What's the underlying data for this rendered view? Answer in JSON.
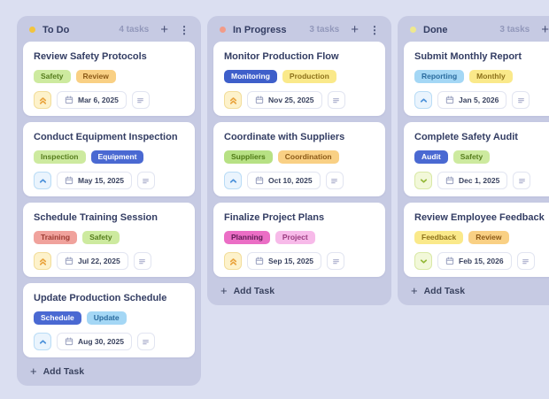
{
  "board": {
    "columns": [
      {
        "title": "To Do",
        "count_label": "4 tasks",
        "dot_color": "#f2c43d",
        "add_task_label": "Add Task",
        "tasks": [
          {
            "title": "Review Safety Protocols",
            "priority": "high",
            "date": "Mar 6, 2025",
            "tags": [
              {
                "label": "Safety",
                "bg": "#cdea9f",
                "fg": "#567d1d"
              },
              {
                "label": "Review",
                "bg": "#f9d084",
                "fg": "#8c5a17"
              }
            ]
          },
          {
            "title": "Conduct Equipment Inspection",
            "priority": "medium",
            "date": "May 15, 2025",
            "tags": [
              {
                "label": "Inspection",
                "bg": "#cdea9f",
                "fg": "#567d1d"
              },
              {
                "label": "Equipment",
                "bg": "#4a69d2",
                "fg": "#ffffff"
              }
            ]
          },
          {
            "title": "Schedule Training Session",
            "priority": "high",
            "date": "Jul 22, 2025",
            "tags": [
              {
                "label": "Training",
                "bg": "#f0a29c",
                "fg": "#9c3a31"
              },
              {
                "label": "Safety",
                "bg": "#cdea9f",
                "fg": "#567d1d"
              }
            ]
          },
          {
            "title": "Update Production Schedule",
            "priority": "medium",
            "date": "Aug 30, 2025",
            "tags": [
              {
                "label": "Schedule",
                "bg": "#4a69d2",
                "fg": "#ffffff"
              },
              {
                "label": "Update",
                "bg": "#a4d7f5",
                "fg": "#2a6b9e"
              }
            ]
          }
        ]
      },
      {
        "title": "In Progress",
        "count_label": "3 tasks",
        "dot_color": "#f29b88",
        "add_task_label": "Add Task",
        "tasks": [
          {
            "title": "Monitor Production Flow",
            "priority": "high",
            "date": "Nov 25, 2025",
            "tags": [
              {
                "label": "Monitoring",
                "bg": "#3e5fca",
                "fg": "#ffffff"
              },
              {
                "label": "Production",
                "bg": "#fae98a",
                "fg": "#8e721b"
              }
            ]
          },
          {
            "title": "Coordinate with Suppliers",
            "priority": "medium",
            "date": "Oct 10, 2025",
            "tags": [
              {
                "label": "Suppliers",
                "bg": "#b7e184",
                "fg": "#4f7a15"
              },
              {
                "label": "Coordination",
                "bg": "#f9d084",
                "fg": "#8c5a17"
              }
            ]
          },
          {
            "title": "Finalize Project Plans",
            "priority": "high",
            "date": "Sep 15, 2025",
            "tags": [
              {
                "label": "Planning",
                "bg": "#eb6ec5",
                "fg": "#5e1b54"
              },
              {
                "label": "Project",
                "bg": "#f7bae9",
                "fg": "#9a3b7f"
              }
            ]
          }
        ]
      },
      {
        "title": "Done",
        "count_label": "3 tasks",
        "dot_color": "#eee88e",
        "add_task_label": "Add Task",
        "tasks": [
          {
            "title": "Submit Monthly Report",
            "priority": "medium",
            "date": "Jan 5, 2026",
            "tags": [
              {
                "label": "Reporting",
                "bg": "#a4d7f5",
                "fg": "#2a6b9e"
              },
              {
                "label": "Monthly",
                "bg": "#fae98a",
                "fg": "#8e721b"
              }
            ]
          },
          {
            "title": "Complete Safety Audit",
            "priority": "low",
            "date": "Dec 1, 2025",
            "tags": [
              {
                "label": "Audit",
                "bg": "#4a69d2",
                "fg": "#ffffff"
              },
              {
                "label": "Safety",
                "bg": "#cdea9f",
                "fg": "#567d1d"
              }
            ]
          },
          {
            "title": "Review Employee Feedback",
            "priority": "low",
            "date": "Feb 15, 2026",
            "tags": [
              {
                "label": "Feedback",
                "bg": "#fae98a",
                "fg": "#8e721b"
              },
              {
                "label": "Review",
                "bg": "#f9d084",
                "fg": "#8c5a17"
              }
            ]
          }
        ]
      }
    ]
  },
  "icons": {
    "plus_glyph": "+",
    "kebab_glyph": "⋮"
  },
  "priority_styles": {
    "high": {
      "icon": "chevrons-up-icon",
      "bg": "#fdf2cb",
      "border": "#f2dd9a",
      "fg": "#e9a33c"
    },
    "medium": {
      "icon": "chevron-up-icon",
      "bg": "#eaf4fd",
      "border": "#b9dcf6",
      "fg": "#4a90d9"
    },
    "low": {
      "icon": "chevron-down-icon",
      "bg": "#f2f8d9",
      "border": "#d9e9a6",
      "fg": "#94b838"
    }
  },
  "theme": {
    "page_bg": "#dbdff1",
    "column_bg": "#c6cae3",
    "card_bg": "#ffffff",
    "title_color": "#333d63",
    "count_color": "#9298bb"
  }
}
